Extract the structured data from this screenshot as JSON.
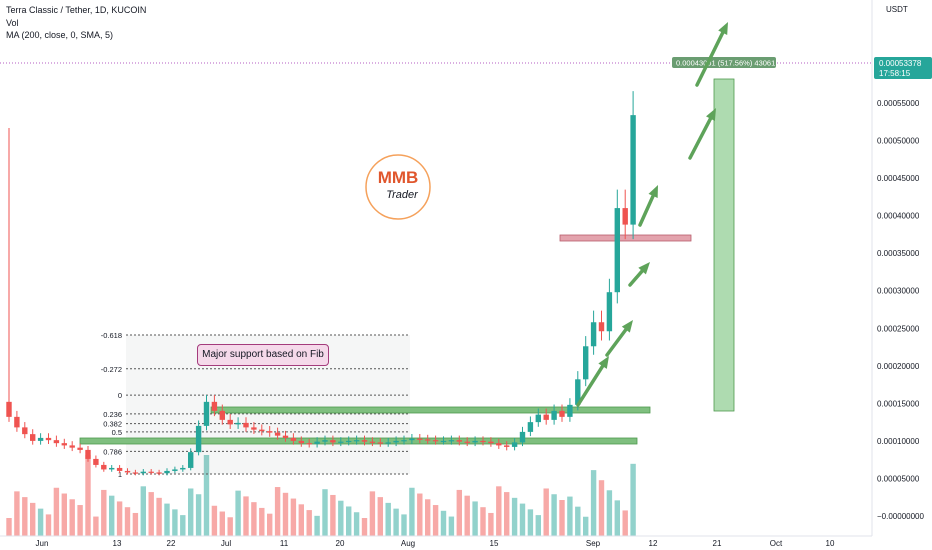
{
  "header": {
    "symbol_line": "Terra Classic / Tether, 1D, KUCOIN",
    "vol_label": "Vol",
    "ma_label": "MA (200, close, 0, SMA, 5)"
  },
  "logo": {
    "top_text": "MMB",
    "bottom_text": "Trader"
  },
  "annotation": {
    "callout_text": "Major support based on Fib"
  },
  "measure": {
    "text": "0.00043061 (517.56%) 43061"
  },
  "price_badge": {
    "price": "0.00053378",
    "countdown": "17:58:15"
  },
  "colors": {
    "up": "#26a69a",
    "down": "#ef5350",
    "support": "#7fbf7f",
    "resistance": "#e3a3ad",
    "fib_line": "#555555",
    "price_line": "#9c27b0"
  },
  "chart_data": {
    "type": "candlestick",
    "currency_label": "USDT",
    "y_ticks": [
      "0.00055000",
      "0.00050000",
      "0.00045000",
      "0.00040000",
      "0.00035000",
      "0.00030000",
      "0.00025000",
      "0.00020000",
      "0.00015000",
      "0.00010000",
      "0.00005000",
      "−0.00000000",
      "−0.00005000"
    ],
    "y_tick_values": [
      0.00055,
      0.0005,
      0.00045,
      0.0004,
      0.00035,
      0.0003,
      0.00025,
      0.0002,
      0.00015,
      0.0001,
      5e-05,
      0.0,
      -5e-05
    ],
    "x_ticks": [
      "Jun",
      "13",
      "22",
      "Jul",
      "11",
      "20",
      "Aug",
      "15",
      "Sep",
      "12",
      "21",
      "Oct",
      "10"
    ],
    "fib_levels": [
      {
        "label": "-0.618",
        "value": 0.000241
      },
      {
        "label": "-0.272",
        "value": 0.000196
      },
      {
        "label": "0",
        "value": 0.000161
      },
      {
        "label": "0.236",
        "value": 0.000136
      },
      {
        "label": "0.382",
        "value": 0.000123
      },
      {
        "label": "0.5",
        "value": 0.000112
      },
      {
        "label": "0.618",
        "value": 0.000101
      },
      {
        "label": "0.786",
        "value": 8.6e-05
      },
      {
        "label": "1",
        "value": 5.6e-05
      }
    ],
    "candles_sample_first": {
      "open": 0.000152,
      "close": 0.000132
    },
    "candles_sample_last": {
      "open": 0.000491,
      "close": 0.000534
    },
    "last_price": 0.00053378,
    "series": [
      {
        "name": "Vol"
      },
      {
        "name": "MA (200, close, 0, SMA, 5)"
      }
    ]
  }
}
